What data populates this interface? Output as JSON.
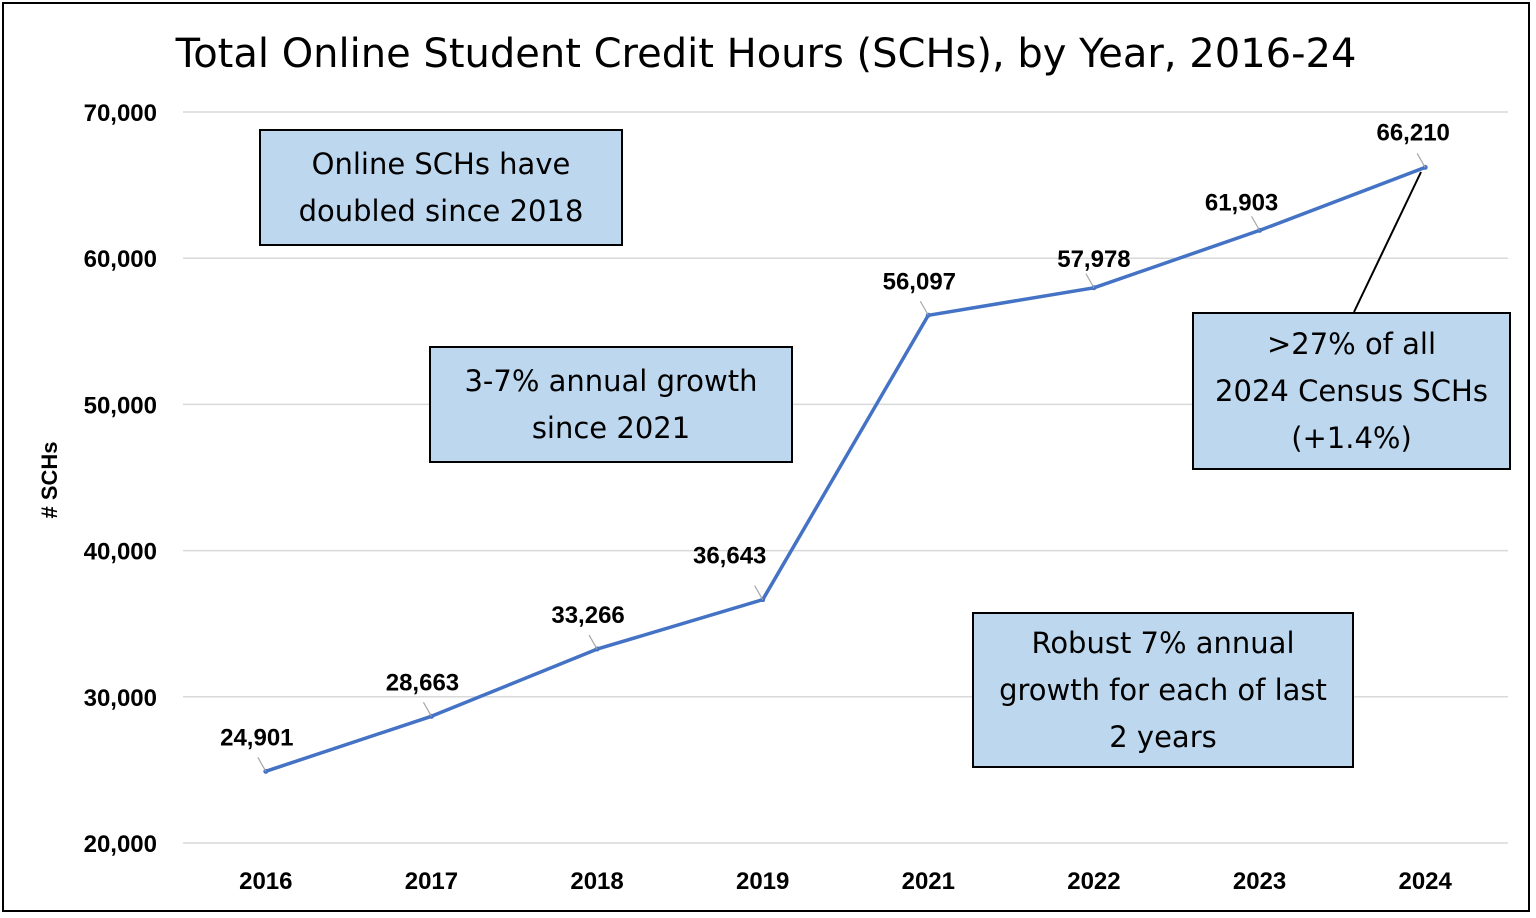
{
  "chart_data": {
    "type": "line",
    "title": "Total Online Student Credit Hours (SCHs), by Year, 2016-24",
    "xlabel": "",
    "ylabel": "# SCHs",
    "categories": [
      "2016",
      "2017",
      "2018",
      "2019",
      "2021",
      "2022",
      "2023",
      "2024"
    ],
    "values": [
      24901,
      28663,
      33266,
      36643,
      56097,
      57978,
      61903,
      66210
    ],
    "data_labels": [
      "24,901",
      "28,663",
      "33,266",
      "36,643",
      "56,097",
      "57,978",
      "61,903",
      "66,210"
    ],
    "ylim": [
      20000,
      70000
    ],
    "yticks": [
      20000,
      30000,
      40000,
      50000,
      60000,
      70000
    ],
    "ytick_labels": [
      "20,000",
      "30,000",
      "40,000",
      "50,000",
      "60,000",
      "70,000"
    ],
    "grid": true,
    "series_color": "#4472c4",
    "annotations": [
      "Online SCHs have doubled since 2018",
      "3-7% annual growth since 2021",
      ">27% of all 2024 Census SCHs (+1.4%)",
      "Robust 7% annual growth for each of last 2 years"
    ]
  },
  "callouts": {
    "doubled": "Online SCHs have\ndoubled since 2018",
    "annual_growth": "3-7% annual growth\nsince 2021",
    "census": ">27% of all\n2024 Census SCHs\n(+1.4%)",
    "robust": "Robust 7% annual\ngrowth for each of last\n2 years"
  },
  "colors": {
    "callout_fill": "#bdd7ee",
    "gridline": "#d9d9d9"
  }
}
